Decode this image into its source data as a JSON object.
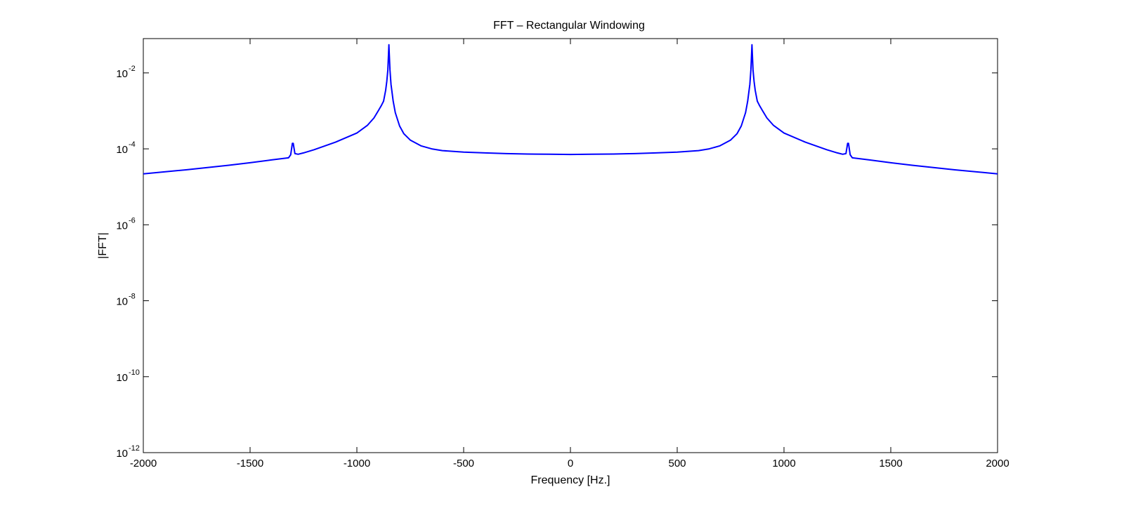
{
  "chart_data": {
    "type": "line",
    "title": "FFT – Rectangular Windowing",
    "xlabel": "Frequency [Hz.]",
    "ylabel": "|FFT|",
    "xlim": [
      -2000,
      2000
    ],
    "ylim": [
      1e-12,
      0.08
    ],
    "yscale": "log",
    "grid": false,
    "legend": "none",
    "xticks": [
      "-2000",
      "-1500",
      "-1000",
      "-500",
      "0",
      "500",
      "1000",
      "1500",
      "2000"
    ],
    "xtick_values": [
      -2000,
      -1500,
      -1000,
      -500,
      0,
      500,
      1000,
      1500,
      2000
    ],
    "yticks": [
      {
        "base": "10",
        "exp": "-12",
        "value": 1e-12
      },
      {
        "base": "10",
        "exp": "-10",
        "value": 1e-10
      },
      {
        "base": "10",
        "exp": "-8",
        "value": 1e-08
      },
      {
        "base": "10",
        "exp": "-6",
        "value": 1e-06
      },
      {
        "base": "10",
        "exp": "-4",
        "value": 0.0001
      },
      {
        "base": "10",
        "exp": "-2",
        "value": 0.01
      }
    ],
    "series": [
      {
        "color": "#0000ff",
        "x": [
          -2000,
          -1800,
          -1600,
          -1500,
          -1400,
          -1320,
          -1310,
          -1302,
          -1298,
          -1290,
          -1275,
          -1250,
          -1200,
          -1100,
          -1000,
          -950,
          -920,
          -900,
          -885,
          -875,
          -870,
          -865,
          -860,
          -855,
          -852,
          -850,
          -848,
          -845,
          -840,
          -830,
          -820,
          -800,
          -780,
          -750,
          -700,
          -650,
          -600,
          -500,
          -400,
          -300,
          -200,
          -100,
          0,
          100,
          200,
          300,
          400,
          500,
          600,
          650,
          700,
          750,
          780,
          800,
          820,
          830,
          840,
          845,
          848,
          850,
          852,
          855,
          860,
          865,
          870,
          875,
          885,
          900,
          920,
          950,
          1000,
          1100,
          1200,
          1250,
          1275,
          1290,
          1298,
          1302,
          1310,
          1320,
          1400,
          1500,
          1600,
          1800,
          2000
        ],
        "y": [
          2.2e-05,
          2.8e-05,
          3.7e-05,
          4.3e-05,
          5.1e-05,
          5.8e-05,
          7e-05,
          0.00014,
          0.00014,
          7.5e-05,
          7.2e-05,
          7.8e-05,
          9.5e-05,
          0.00015,
          0.00026,
          0.00042,
          0.00065,
          0.001,
          0.0014,
          0.0018,
          0.0025,
          0.0035,
          0.006,
          0.012,
          0.03,
          0.055,
          0.03,
          0.012,
          0.005,
          0.0018,
          0.0009,
          0.0004,
          0.00025,
          0.00017,
          0.00012,
          0.0001,
          9e-05,
          8.2e-05,
          7.8e-05,
          7.5e-05,
          7.3e-05,
          7.2e-05,
          7.1e-05,
          7.2e-05,
          7.3e-05,
          7.5e-05,
          7.8e-05,
          8.2e-05,
          9e-05,
          0.0001,
          0.00012,
          0.00017,
          0.00025,
          0.0004,
          0.0009,
          0.0018,
          0.005,
          0.012,
          0.03,
          0.055,
          0.03,
          0.012,
          0.006,
          0.0035,
          0.0025,
          0.0018,
          0.0014,
          0.001,
          0.00065,
          0.00042,
          0.00026,
          0.00015,
          9.5e-05,
          7.8e-05,
          7.2e-05,
          7.5e-05,
          0.00014,
          0.00014,
          7e-05,
          5.8e-05,
          5.1e-05,
          4.3e-05,
          3.7e-05,
          2.8e-05,
          2.2e-05
        ]
      }
    ]
  }
}
